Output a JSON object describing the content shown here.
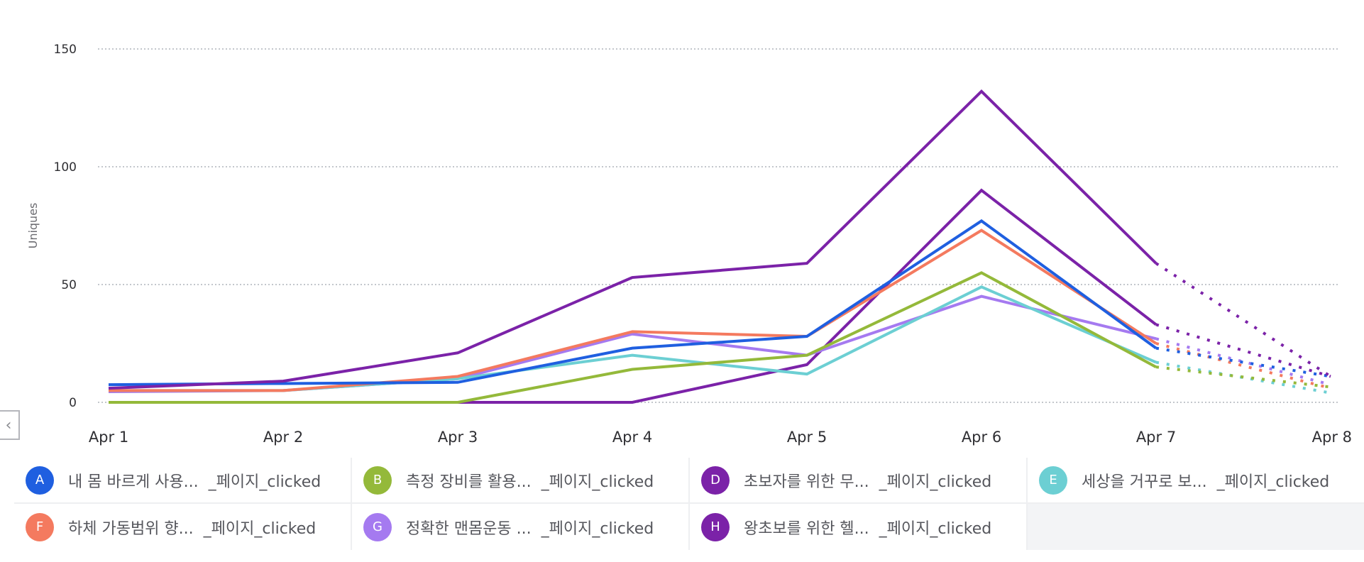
{
  "chart_data": {
    "type": "line",
    "title": "",
    "xlabel": "",
    "ylabel": "Uniques",
    "ylim": [
      0,
      150
    ],
    "y_ticks": [
      "0",
      "50",
      "100",
      "150"
    ],
    "y_tick_values": [
      0,
      50,
      100,
      150
    ],
    "categories": [
      "Apr 1",
      "Apr 2",
      "Apr 3",
      "Apr 4",
      "Apr 5",
      "Apr 6",
      "Apr 7",
      "Apr 8"
    ],
    "grid": true,
    "incomplete_from_index": 6,
    "series": [
      {
        "key": "A",
        "name": "내 몸 바르게 사용...",
        "suffix": "_페이지_clicked",
        "color": "#1f5fe0",
        "values": [
          7.5,
          8,
          8.5,
          23,
          28,
          77,
          23,
          11
        ]
      },
      {
        "key": "B",
        "name": "측정 장비를 활용...",
        "suffix": "_페이지_clicked",
        "color": "#94b93a",
        "values": [
          0,
          0,
          0,
          14,
          20,
          55,
          15,
          6.5
        ]
      },
      {
        "key": "D",
        "name": "초보자를 위한 무...",
        "suffix": "_페이지_clicked",
        "color": "#7b22a8",
        "values": [
          6,
          9,
          21,
          53,
          59,
          132,
          59,
          11
        ]
      },
      {
        "key": "E",
        "name": "세상을 거꾸로 보...",
        "suffix": "_페이지_clicked",
        "color": "#6ccfd3",
        "values": [
          5,
          5,
          10,
          20,
          12,
          49,
          17,
          4
        ]
      },
      {
        "key": "F",
        "name": "하체 가동범위 향...",
        "suffix": "_페이지_clicked",
        "color": "#f47a5f",
        "values": [
          5,
          5,
          11,
          30,
          28,
          73,
          25,
          6
        ]
      },
      {
        "key": "G",
        "name": "정확한 맨몸운동 ...",
        "suffix": "_페이지_clicked",
        "color": "#a57af0",
        "values": [
          4.5,
          5,
          10,
          29,
          20,
          45,
          27,
          7.5
        ]
      },
      {
        "key": "H",
        "name": "왕초보를 위한 헬...",
        "suffix": "_페이지_clicked",
        "color": "#7b22a8",
        "values": [
          0,
          0,
          0,
          0,
          16,
          90,
          33,
          11
        ]
      }
    ]
  },
  "legend_order": [
    "A",
    "B",
    "D",
    "E",
    "F",
    "G",
    "H"
  ],
  "nav": {
    "back_icon": "chevron-left-icon",
    "back_glyph": "‹"
  }
}
